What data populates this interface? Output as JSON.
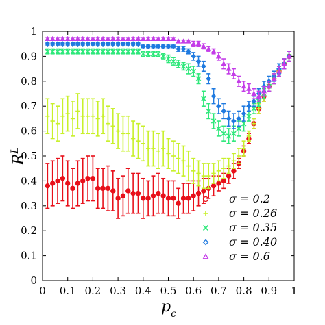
{
  "chart_data": {
    "type": "scatter",
    "xlabel": "p_c",
    "ylabel": "R^L",
    "xlim": [
      0,
      1
    ],
    "ylim": [
      0,
      1
    ],
    "xticks": [
      "0",
      "0.1",
      "0.2",
      "0.3",
      "0.4",
      "0.5",
      "0.6",
      "0.7",
      "0.8",
      "0.9",
      "1"
    ],
    "yticks": [
      "0",
      "0.1",
      "0.2",
      "0.3",
      "0.4",
      "0.5",
      "0.6",
      "0.7",
      "0.8",
      "0.9",
      "1"
    ],
    "grid": false,
    "legend_position": "bottom-right",
    "series": [
      {
        "name": "σ = 0.2",
        "marker": "circle",
        "color": "#e8101a",
        "x": [
          0.02,
          0.04,
          0.06,
          0.08,
          0.1,
          0.12,
          0.14,
          0.16,
          0.18,
          0.2,
          0.22,
          0.24,
          0.26,
          0.28,
          0.3,
          0.32,
          0.34,
          0.36,
          0.38,
          0.4,
          0.42,
          0.44,
          0.46,
          0.48,
          0.5,
          0.52,
          0.54,
          0.56,
          0.58,
          0.6,
          0.62,
          0.64,
          0.66,
          0.68,
          0.7,
          0.72,
          0.74,
          0.76,
          0.78,
          0.8,
          0.82,
          0.84,
          0.86,
          0.88,
          0.9,
          0.92,
          0.94,
          0.96,
          0.98
        ],
        "y": [
          0.38,
          0.39,
          0.4,
          0.41,
          0.39,
          0.37,
          0.39,
          0.4,
          0.41,
          0.41,
          0.37,
          0.37,
          0.37,
          0.36,
          0.33,
          0.34,
          0.36,
          0.35,
          0.35,
          0.33,
          0.33,
          0.34,
          0.35,
          0.34,
          0.33,
          0.33,
          0.31,
          0.33,
          0.33,
          0.34,
          0.35,
          0.36,
          0.37,
          0.38,
          0.39,
          0.4,
          0.42,
          0.44,
          0.47,
          0.52,
          0.57,
          0.63,
          0.69,
          0.74,
          0.78,
          0.81,
          0.84,
          0.87,
          0.9
        ],
        "err": [
          0.09,
          0.09,
          0.09,
          0.09,
          0.09,
          0.08,
          0.09,
          0.09,
          0.09,
          0.09,
          0.08,
          0.08,
          0.09,
          0.08,
          0.08,
          0.08,
          0.09,
          0.08,
          0.08,
          0.08,
          0.07,
          0.08,
          0.08,
          0.07,
          0.07,
          0.07,
          0.06,
          0.06,
          0.06,
          0.06,
          0.05,
          0.05,
          0.04,
          0.04,
          0.03,
          0.03,
          0.03,
          0.03,
          0.02,
          0.02,
          0.02,
          0.02,
          0.02,
          0.02,
          0.02,
          0.02,
          0.02,
          0.02,
          0.02
        ]
      },
      {
        "name": "σ = 0.26",
        "marker": "plus",
        "color": "#c8f02a",
        "x": [
          0.02,
          0.04,
          0.06,
          0.08,
          0.1,
          0.12,
          0.14,
          0.16,
          0.18,
          0.2,
          0.22,
          0.24,
          0.26,
          0.28,
          0.3,
          0.32,
          0.34,
          0.36,
          0.38,
          0.4,
          0.42,
          0.44,
          0.46,
          0.48,
          0.5,
          0.52,
          0.54,
          0.56,
          0.58,
          0.6,
          0.62,
          0.64,
          0.66,
          0.68,
          0.7,
          0.72,
          0.74,
          0.76,
          0.78,
          0.8,
          0.82,
          0.84,
          0.86,
          0.88,
          0.9,
          0.92,
          0.94,
          0.96,
          0.98
        ],
        "y": [
          0.66,
          0.64,
          0.63,
          0.66,
          0.67,
          0.65,
          0.68,
          0.66,
          0.66,
          0.66,
          0.65,
          0.66,
          0.63,
          0.62,
          0.6,
          0.59,
          0.59,
          0.57,
          0.56,
          0.55,
          0.53,
          0.53,
          0.52,
          0.53,
          0.51,
          0.5,
          0.49,
          0.48,
          0.46,
          0.44,
          0.43,
          0.42,
          0.42,
          0.43,
          0.44,
          0.45,
          0.46,
          0.48,
          0.5,
          0.53,
          0.58,
          0.63,
          0.69,
          0.74,
          0.78,
          0.81,
          0.84,
          0.87,
          0.9
        ],
        "err": [
          0.07,
          0.07,
          0.07,
          0.07,
          0.07,
          0.07,
          0.07,
          0.07,
          0.07,
          0.07,
          0.07,
          0.07,
          0.07,
          0.07,
          0.07,
          0.07,
          0.07,
          0.07,
          0.07,
          0.07,
          0.07,
          0.07,
          0.07,
          0.07,
          0.06,
          0.06,
          0.06,
          0.06,
          0.06,
          0.05,
          0.05,
          0.05,
          0.05,
          0.04,
          0.04,
          0.04,
          0.03,
          0.03,
          0.03,
          0.03,
          0.02,
          0.02,
          0.02,
          0.02,
          0.02,
          0.02,
          0.02,
          0.02,
          0.02
        ]
      },
      {
        "name": "σ = 0.35",
        "marker": "x",
        "color": "#2ee87a",
        "x": [
          0.02,
          0.04,
          0.06,
          0.08,
          0.1,
          0.12,
          0.14,
          0.16,
          0.18,
          0.2,
          0.22,
          0.24,
          0.26,
          0.28,
          0.3,
          0.32,
          0.34,
          0.36,
          0.38,
          0.4,
          0.42,
          0.44,
          0.46,
          0.48,
          0.5,
          0.52,
          0.54,
          0.56,
          0.58,
          0.6,
          0.62,
          0.64,
          0.66,
          0.68,
          0.7,
          0.72,
          0.74,
          0.76,
          0.78,
          0.8,
          0.82,
          0.84,
          0.86,
          0.88,
          0.9,
          0.92,
          0.94,
          0.96,
          0.98
        ],
        "y": [
          0.92,
          0.92,
          0.92,
          0.92,
          0.92,
          0.92,
          0.92,
          0.92,
          0.92,
          0.92,
          0.92,
          0.92,
          0.92,
          0.92,
          0.92,
          0.92,
          0.92,
          0.92,
          0.92,
          0.91,
          0.91,
          0.91,
          0.91,
          0.9,
          0.89,
          0.88,
          0.87,
          0.86,
          0.85,
          0.84,
          0.81,
          0.73,
          0.68,
          0.64,
          0.61,
          0.59,
          0.58,
          0.59,
          0.61,
          0.63,
          0.66,
          0.69,
          0.72,
          0.75,
          0.78,
          0.81,
          0.84,
          0.87,
          0.9
        ],
        "err": [
          0.01,
          0.01,
          0.01,
          0.01,
          0.01,
          0.01,
          0.01,
          0.01,
          0.01,
          0.01,
          0.01,
          0.01,
          0.01,
          0.01,
          0.01,
          0.01,
          0.01,
          0.01,
          0.01,
          0.01,
          0.01,
          0.01,
          0.01,
          0.01,
          0.015,
          0.015,
          0.015,
          0.015,
          0.02,
          0.02,
          0.02,
          0.03,
          0.03,
          0.03,
          0.03,
          0.03,
          0.03,
          0.03,
          0.03,
          0.03,
          0.02,
          0.02,
          0.02,
          0.02,
          0.02,
          0.02,
          0.02,
          0.02,
          0.02
        ]
      },
      {
        "name": "σ = 0.40",
        "marker": "diamond",
        "color": "#1f7ae0",
        "x": [
          0.02,
          0.04,
          0.06,
          0.08,
          0.1,
          0.12,
          0.14,
          0.16,
          0.18,
          0.2,
          0.22,
          0.24,
          0.26,
          0.28,
          0.3,
          0.32,
          0.34,
          0.36,
          0.38,
          0.4,
          0.42,
          0.44,
          0.46,
          0.48,
          0.5,
          0.52,
          0.54,
          0.56,
          0.58,
          0.6,
          0.62,
          0.64,
          0.66,
          0.68,
          0.7,
          0.72,
          0.74,
          0.76,
          0.78,
          0.8,
          0.82,
          0.84,
          0.86,
          0.88,
          0.9,
          0.92,
          0.94,
          0.96,
          0.98
        ],
        "y": [
          0.95,
          0.95,
          0.95,
          0.95,
          0.95,
          0.95,
          0.95,
          0.95,
          0.95,
          0.95,
          0.95,
          0.95,
          0.95,
          0.95,
          0.95,
          0.95,
          0.95,
          0.95,
          0.95,
          0.94,
          0.94,
          0.94,
          0.94,
          0.94,
          0.94,
          0.94,
          0.93,
          0.93,
          0.92,
          0.9,
          0.88,
          0.86,
          0.81,
          0.74,
          0.7,
          0.68,
          0.65,
          0.64,
          0.65,
          0.67,
          0.7,
          0.72,
          0.75,
          0.78,
          0.8,
          0.82,
          0.85,
          0.87,
          0.9
        ],
        "err": [
          0.005,
          0.005,
          0.005,
          0.005,
          0.005,
          0.005,
          0.005,
          0.005,
          0.005,
          0.005,
          0.005,
          0.005,
          0.005,
          0.005,
          0.005,
          0.005,
          0.005,
          0.005,
          0.005,
          0.005,
          0.005,
          0.005,
          0.005,
          0.005,
          0.005,
          0.005,
          0.01,
          0.01,
          0.01,
          0.015,
          0.02,
          0.02,
          0.02,
          0.03,
          0.03,
          0.03,
          0.03,
          0.03,
          0.03,
          0.03,
          0.02,
          0.02,
          0.02,
          0.02,
          0.02,
          0.02,
          0.02,
          0.02,
          0.02
        ]
      },
      {
        "name": "σ = 0.6",
        "marker": "triangle",
        "color": "#c43de8",
        "x": [
          0.02,
          0.04,
          0.06,
          0.08,
          0.1,
          0.12,
          0.14,
          0.16,
          0.18,
          0.2,
          0.22,
          0.24,
          0.26,
          0.28,
          0.3,
          0.32,
          0.34,
          0.36,
          0.38,
          0.4,
          0.42,
          0.44,
          0.46,
          0.48,
          0.5,
          0.52,
          0.54,
          0.56,
          0.58,
          0.6,
          0.62,
          0.64,
          0.66,
          0.68,
          0.7,
          0.72,
          0.74,
          0.76,
          0.78,
          0.8,
          0.82,
          0.84,
          0.86,
          0.88,
          0.9,
          0.92,
          0.94,
          0.96,
          0.98
        ],
        "y": [
          0.97,
          0.97,
          0.97,
          0.97,
          0.97,
          0.97,
          0.97,
          0.97,
          0.97,
          0.97,
          0.97,
          0.97,
          0.97,
          0.97,
          0.97,
          0.97,
          0.97,
          0.97,
          0.97,
          0.97,
          0.97,
          0.97,
          0.97,
          0.97,
          0.97,
          0.97,
          0.96,
          0.96,
          0.96,
          0.95,
          0.95,
          0.94,
          0.93,
          0.92,
          0.9,
          0.87,
          0.85,
          0.83,
          0.8,
          0.78,
          0.77,
          0.75,
          0.74,
          0.76,
          0.78,
          0.81,
          0.84,
          0.87,
          0.9
        ],
        "err": [
          0.005,
          0.005,
          0.005,
          0.005,
          0.005,
          0.005,
          0.005,
          0.005,
          0.005,
          0.005,
          0.005,
          0.005,
          0.005,
          0.005,
          0.005,
          0.005,
          0.005,
          0.005,
          0.005,
          0.005,
          0.005,
          0.005,
          0.005,
          0.005,
          0.005,
          0.005,
          0.005,
          0.005,
          0.005,
          0.01,
          0.01,
          0.01,
          0.01,
          0.01,
          0.015,
          0.02,
          0.02,
          0.02,
          0.02,
          0.02,
          0.02,
          0.02,
          0.02,
          0.02,
          0.02,
          0.02,
          0.02,
          0.02,
          0.02
        ]
      }
    ]
  }
}
